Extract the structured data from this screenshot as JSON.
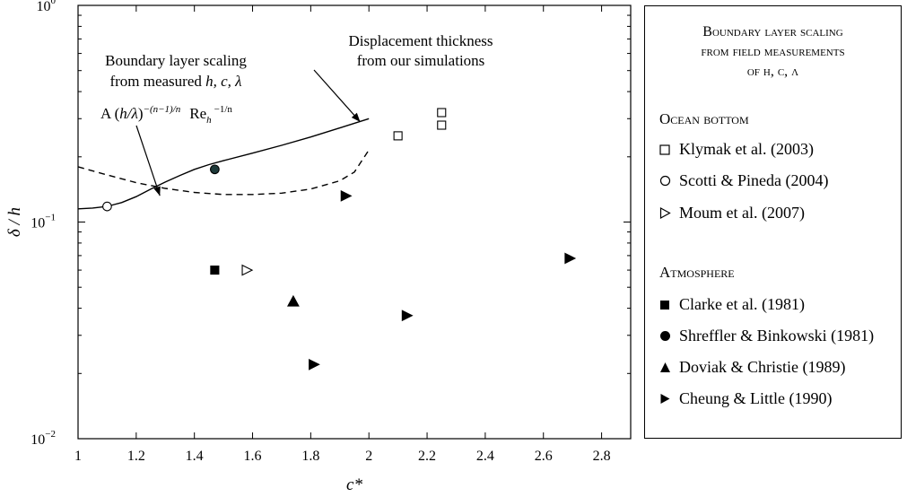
{
  "chart_data": {
    "type": "scatter",
    "title": "",
    "xlabel": "c*",
    "ylabel": "δ / h",
    "xlim": [
      1,
      2.9
    ],
    "ylim": [
      0.01,
      1
    ],
    "yscale": "log",
    "xticks": [
      "1",
      "1.2",
      "1.4",
      "1.6",
      "1.8",
      "2",
      "2.2",
      "2.4",
      "2.6",
      "2.8"
    ],
    "yticks": [
      {
        "base": "10",
        "exp": "−2",
        "value": 0.01
      },
      {
        "base": "10",
        "exp": "−1",
        "value": 0.1
      },
      {
        "base": "10",
        "exp": "0",
        "value": 1
      }
    ],
    "lines": [
      {
        "name": "Displacement thickness from our simulations",
        "style": "solid",
        "x": [
          1.0,
          1.05,
          1.1,
          1.15,
          1.2,
          1.25,
          1.3,
          1.35,
          1.4,
          1.45,
          1.5,
          1.6,
          1.7,
          1.8,
          1.9,
          2.0
        ],
        "y": [
          0.115,
          0.116,
          0.118,
          0.123,
          0.131,
          0.142,
          0.153,
          0.164,
          0.175,
          0.184,
          0.192,
          0.208,
          0.226,
          0.247,
          0.272,
          0.3
        ]
      },
      {
        "name": "Boundary layer scaling from measured h, c, λ",
        "style": "dashed",
        "x": [
          1.0,
          1.1,
          1.2,
          1.3,
          1.4,
          1.5,
          1.6,
          1.7,
          1.8,
          1.9,
          1.95,
          2.0
        ],
        "y": [
          0.18,
          0.165,
          0.152,
          0.143,
          0.137,
          0.134,
          0.134,
          0.136,
          0.142,
          0.155,
          0.17,
          0.215
        ]
      }
    ],
    "series": [
      {
        "name": "Klymak et al. (2003)",
        "group": "Ocean bottom",
        "marker": "square-open",
        "points": [
          [
            2.1,
            0.25
          ],
          [
            2.25,
            0.32
          ],
          [
            2.25,
            0.28
          ]
        ]
      },
      {
        "name": "Scotti & Pineda (2004)",
        "group": "Ocean bottom",
        "marker": "circle-open",
        "points": [
          [
            1.1,
            0.118
          ]
        ]
      },
      {
        "name": "Moum et al. (2007)",
        "group": "Ocean bottom",
        "marker": "triangle-right-open",
        "points": [
          [
            1.58,
            0.06
          ]
        ]
      },
      {
        "name": "Clarke et al. (1981)",
        "group": "Atmosphere",
        "marker": "square-filled",
        "points": [
          [
            1.47,
            0.06
          ]
        ]
      },
      {
        "name": "Shreffler & Binkowski (1981)",
        "group": "Atmosphere",
        "marker": "circle-filled",
        "points": [
          [
            1.47,
            0.175
          ]
        ]
      },
      {
        "name": "Doviak & Christie (1989)",
        "group": "Atmosphere",
        "marker": "triangle-up-filled",
        "points": [
          [
            1.74,
            0.043
          ]
        ]
      },
      {
        "name": "Cheung & Little (1990)",
        "group": "Atmosphere",
        "marker": "triangle-right-filled",
        "points": [
          [
            1.92,
            0.132
          ],
          [
            2.13,
            0.037
          ],
          [
            1.81,
            0.022
          ],
          [
            2.69,
            0.068
          ]
        ]
      }
    ],
    "annotations": [
      {
        "text_lines": [
          "Displacement thickness",
          "from our simulations"
        ],
        "arrow_to": [
          1.97,
          0.29
        ]
      },
      {
        "text_lines": [
          "Boundary layer scaling",
          "from measured h, c, λ"
        ]
      },
      {
        "formula": "A (h/λ)−(n−1)/n Reh−1/n",
        "arrow_to": [
          1.05,
          0.16
        ]
      }
    ],
    "grid": false,
    "legend_position": "right"
  },
  "annotation": {
    "sim_line1": "Displacement thickness",
    "sim_line2": "from our simulations",
    "bl_line1": "Boundary layer scaling",
    "bl_line2": "from measured ",
    "bl_vars": "h, c, λ",
    "formula_A": "A (",
    "formula_h": "h/λ",
    "formula_close": ")",
    "formula_exp": "−(n−1)/n",
    "formula_Re": "Re",
    "formula_sub": "h",
    "formula_exp2": "−1/n"
  },
  "legend": {
    "title_line1": "Boundary layer scaling",
    "title_line2": "from field measurements",
    "title_line3": "of h, c, λ",
    "group_ocean": "Ocean bottom",
    "group_atmos": "Atmosphere",
    "items": [
      "Klymak et al. (2003)",
      "Scotti & Pineda (2004)",
      "Moum et al. (2007)",
      "Clarke et al. (1981)",
      "Shreffler & Binkowski (1981)",
      "Doviak & Christie (1989)",
      "Cheung & Little (1990)"
    ]
  }
}
